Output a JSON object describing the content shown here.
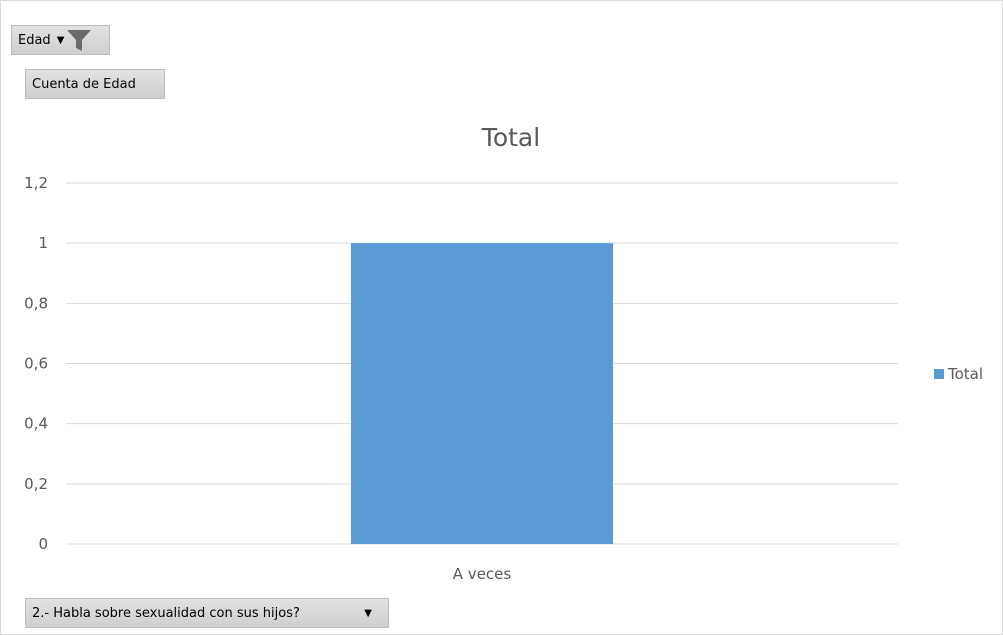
{
  "pivot": {
    "filter_field": {
      "label": "Edad",
      "icon": "filter-icon",
      "dropdown_icon": "chevron-down-icon"
    },
    "value_field": {
      "label": "Cuenta de Edad"
    },
    "axis_field": {
      "label": "2.- Habla sobre sexualidad con sus hijos?",
      "dropdown_icon": "chevron-down-icon"
    }
  },
  "chart_data": {
    "type": "bar",
    "title": "Total",
    "categories": [
      "A veces"
    ],
    "series": [
      {
        "name": "Total",
        "values": [
          1
        ],
        "color": "#5b9bd5"
      }
    ],
    "ylim": [
      0,
      1.2
    ],
    "yticks": [
      "0",
      "0,2",
      "0,4",
      "0,6",
      "0,8",
      "1",
      "1,2"
    ],
    "grid": true,
    "legend_position": "right"
  }
}
